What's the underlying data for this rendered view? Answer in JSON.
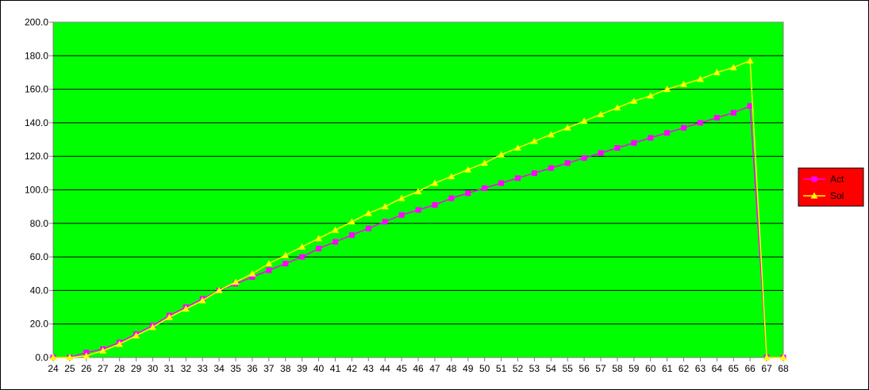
{
  "chart_data": {
    "type": "line",
    "title": "",
    "xlabel": "",
    "ylabel": "",
    "ylim": [
      0,
      200
    ],
    "yticks": [
      "0.0",
      "20.0",
      "40.0",
      "60.0",
      "80.0",
      "100.0",
      "120.0",
      "140.0",
      "160.0",
      "180.0",
      "200.0"
    ],
    "categories": [
      "24",
      "25",
      "26",
      "27",
      "28",
      "29",
      "30",
      "31",
      "32",
      "33",
      "34",
      "35",
      "36",
      "37",
      "38",
      "39",
      "40",
      "41",
      "42",
      "43",
      "44",
      "45",
      "46",
      "47",
      "48",
      "49",
      "50",
      "51",
      "52",
      "53",
      "54",
      "55",
      "56",
      "57",
      "58",
      "59",
      "60",
      "61",
      "62",
      "63",
      "64",
      "65",
      "66",
      "67",
      "68"
    ],
    "grid": true,
    "legend_position": "right",
    "colors": {
      "plot_background": "#00ff00",
      "legend_background": "#ff0000",
      "gridline": "#000000",
      "act": "#ff00ff",
      "sol": "#ffff00"
    },
    "series": [
      {
        "name": "Act",
        "marker": "square",
        "values": [
          0,
          0,
          3,
          5,
          9,
          14,
          19,
          25,
          30,
          35,
          40,
          44,
          48,
          52,
          56,
          60,
          65,
          69,
          73,
          77,
          81,
          85,
          88,
          91,
          95,
          98,
          101,
          104,
          107,
          110,
          113,
          116,
          119,
          122,
          125,
          128,
          131,
          134,
          137,
          140,
          143,
          146,
          150,
          0,
          0
        ]
      },
      {
        "name": "Sol",
        "marker": "triangle",
        "values": [
          0,
          0,
          1,
          4,
          8,
          13,
          18,
          24,
          29,
          34,
          40,
          45,
          50,
          56,
          61,
          66,
          71,
          76,
          81,
          86,
          90,
          95,
          99,
          104,
          108,
          112,
          116,
          121,
          125,
          129,
          133,
          137,
          141,
          145,
          149,
          153,
          156,
          160,
          163,
          166,
          170,
          173,
          177,
          0,
          0
        ]
      }
    ]
  }
}
